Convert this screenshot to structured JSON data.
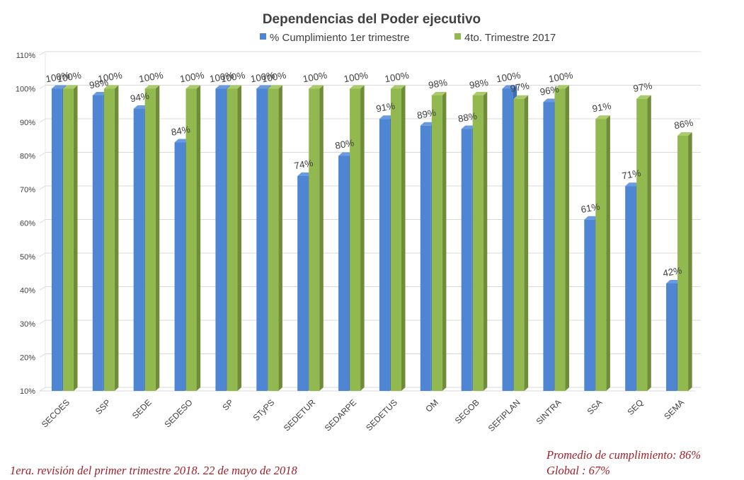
{
  "chart_data": {
    "type": "bar",
    "title": "Dependencias del Poder ejecutivo",
    "categories": [
      "SECOES",
      "SSP",
      "SEDE",
      "SEDESO",
      "SP",
      "STyPS",
      "SEDETUR",
      "SEDARPE",
      "SEDETUS",
      "OM",
      "SEGOB",
      "SEFIPLAN",
      "SINTRA",
      "SSA",
      "SEQ",
      "SEMA"
    ],
    "series": [
      {
        "name": "% Cumplimiento 1er trimestre",
        "color": "#4f86d4",
        "side": "#3e6db3",
        "top": "#6a9be0",
        "values": [
          100,
          98,
          94,
          84,
          100,
          100,
          74,
          80,
          91,
          89,
          88,
          100,
          96,
          61,
          71,
          42
        ]
      },
      {
        "name": "4to. Trimestre 2017",
        "color": "#92b94f",
        "side": "#6f8d39",
        "top": "#a9cb6b",
        "values": [
          100,
          100,
          100,
          100,
          100,
          100,
          100,
          100,
          100,
          98,
          98,
          97,
          100,
          91,
          97,
          86
        ]
      }
    ],
    "ylim": [
      10,
      110
    ],
    "yticks": [
      10,
      20,
      30,
      40,
      50,
      60,
      70,
      80,
      90,
      100,
      110
    ],
    "grid": true,
    "legend_position": "top"
  },
  "footnote": {
    "left": "1era. revisión del primer trimestre 2018.      22 de mayo de 2018",
    "right_line1": "Promedio de cumplimiento: 86%",
    "right_line2": "Global : 67%"
  }
}
